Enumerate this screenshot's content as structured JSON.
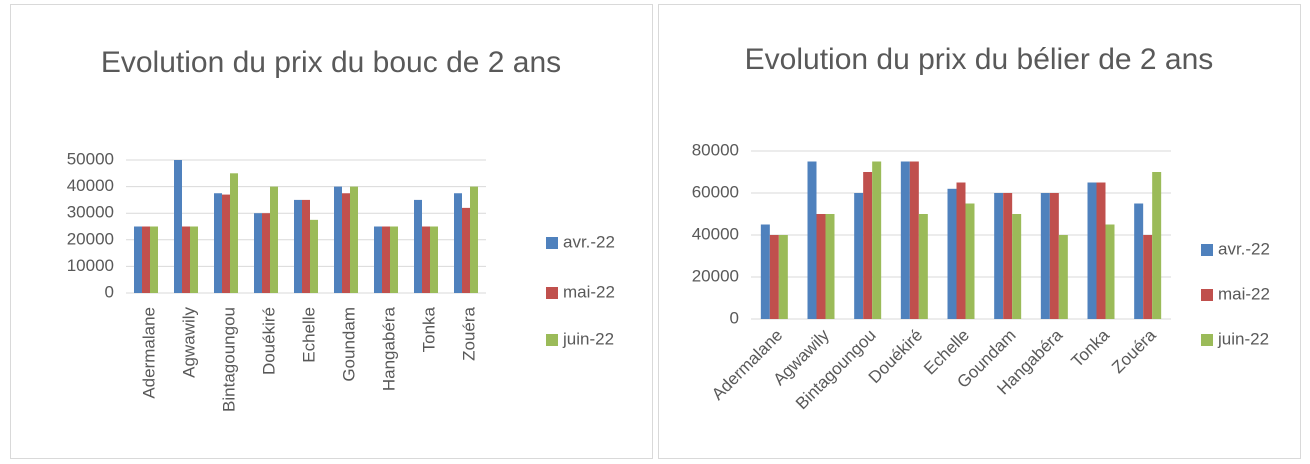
{
  "chart_data": [
    {
      "type": "bar",
      "title": "Evolution du prix du bouc de 2 ans",
      "categories": [
        "Adermalane",
        "Agwawily",
        "Bintagoungou",
        "Douékiré",
        "Echelle",
        "Goundam",
        "Hangabéra",
        "Tonka",
        "Zouéra"
      ],
      "series": [
        {
          "name": "avr.-22",
          "color": "#4f81bd",
          "values": [
            25000,
            50000,
            37500,
            30000,
            35000,
            40000,
            25000,
            35000,
            37500
          ]
        },
        {
          "name": "mai-22",
          "color": "#c0504d",
          "values": [
            25000,
            25000,
            37000,
            30000,
            35000,
            37500,
            25000,
            25000,
            32000
          ]
        },
        {
          "name": "juin-22",
          "color": "#9bbb59",
          "values": [
            25000,
            25000,
            45000,
            40000,
            27500,
            40000,
            25000,
            25000,
            40000
          ]
        }
      ],
      "ylim": [
        0,
        50000
      ],
      "yticks": [
        0,
        10000,
        20000,
        30000,
        40000,
        50000
      ],
      "grid": true,
      "legend": "right"
    },
    {
      "type": "bar",
      "title": "Evolution du prix du bélier de 2 ans",
      "categories": [
        "Adermalane",
        "Agwawily",
        "Bintagoungou",
        "Douékiré",
        "Echelle",
        "Goundam",
        "Hangabéra",
        "Tonka",
        "Zouéra"
      ],
      "series": [
        {
          "name": "avr.-22",
          "color": "#4f81bd",
          "values": [
            45000,
            75000,
            60000,
            75000,
            62000,
            60000,
            60000,
            65000,
            55000
          ]
        },
        {
          "name": "mai-22",
          "color": "#c0504d",
          "values": [
            40000,
            50000,
            70000,
            75000,
            65000,
            60000,
            60000,
            65000,
            40000
          ]
        },
        {
          "name": "juin-22",
          "color": "#9bbb59",
          "values": [
            40000,
            50000,
            75000,
            50000,
            55000,
            50000,
            40000,
            45000,
            70000
          ]
        }
      ],
      "ylim": [
        0,
        80000
      ],
      "yticks": [
        0,
        20000,
        40000,
        60000,
        80000
      ],
      "grid": true,
      "legend": "right"
    }
  ]
}
